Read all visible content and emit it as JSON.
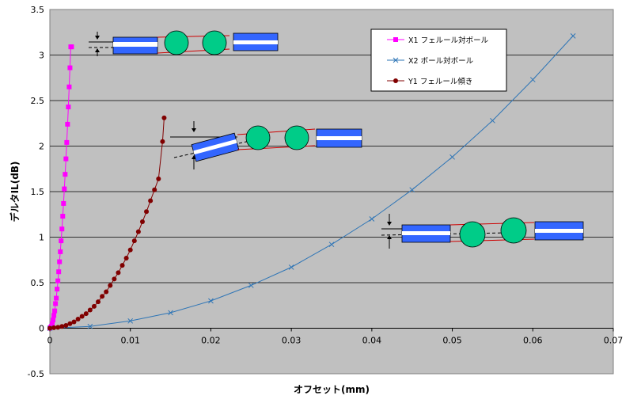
{
  "chart_data": {
    "type": "line",
    "title": "",
    "xlabel": "オフセット(mm)",
    "ylabel": "デルタIL(dB)",
    "xlim": [
      0,
      0.07
    ],
    "ylim": [
      -0.5,
      3.5
    ],
    "xticks": [
      "0",
      "0.01",
      "0.02",
      "0.03",
      "0.04",
      "0.05",
      "0.06",
      "0.07"
    ],
    "yticks": [
      "-0.5",
      "0",
      "0.5",
      "1",
      "1.5",
      "2",
      "2.5",
      "3",
      "3.5"
    ],
    "grid": "horizontal",
    "legend_position": "top-right",
    "series": [
      {
        "name": "X1 フェルール対ボール",
        "color": "#ff00ff",
        "marker": "square",
        "x": [
          0,
          0.0001,
          0.0002,
          0.0003,
          0.0004,
          0.0005,
          0.0006,
          0.0007,
          0.0008,
          0.0009,
          0.001,
          0.0011,
          0.0012,
          0.0013,
          0.0014,
          0.0015,
          0.0016,
          0.0017,
          0.0018,
          0.0019,
          0.002,
          0.0021,
          0.0022,
          0.0023,
          0.0024,
          0.0025,
          0.0026,
          0.0027
        ],
        "y": [
          0,
          0.01,
          0.02,
          0.05,
          0.09,
          0.14,
          0.19,
          0.27,
          0.33,
          0.43,
          0.52,
          0.62,
          0.73,
          0.84,
          0.96,
          1.09,
          1.23,
          1.37,
          1.53,
          1.69,
          1.86,
          2.04,
          2.24,
          2.43,
          2.65,
          2.86,
          3.09,
          3.09
        ]
      },
      {
        "name": "X2 ボール対ボール",
        "color": "#2e75b6",
        "marker": "x",
        "x": [
          0,
          0.005,
          0.01,
          0.015,
          0.02,
          0.025,
          0.03,
          0.035,
          0.04,
          0.045,
          0.05,
          0.055,
          0.06,
          0.065
        ],
        "y": [
          0,
          0.02,
          0.08,
          0.17,
          0.3,
          0.47,
          0.67,
          0.92,
          1.2,
          1.52,
          1.88,
          2.28,
          2.73,
          3.21
        ]
      },
      {
        "name": "Y1 フェルール傾き",
        "color": "#800000",
        "marker": "circle",
        "x": [
          0,
          0.0005,
          0.001,
          0.0015,
          0.002,
          0.0025,
          0.003,
          0.0035,
          0.004,
          0.0045,
          0.005,
          0.0055,
          0.006,
          0.0065,
          0.007,
          0.0075,
          0.008,
          0.0085,
          0.009,
          0.0095,
          0.01,
          0.0105,
          0.011,
          0.0115,
          0.012,
          0.0125,
          0.013,
          0.0135,
          0.014,
          0.0142
        ],
        "y": [
          0,
          0.005,
          0.01,
          0.02,
          0.03,
          0.05,
          0.07,
          0.1,
          0.13,
          0.16,
          0.2,
          0.24,
          0.29,
          0.35,
          0.4,
          0.47,
          0.54,
          0.61,
          0.69,
          0.77,
          0.86,
          0.96,
          1.06,
          1.17,
          1.28,
          1.4,
          1.52,
          1.64,
          2.05,
          2.31
        ]
      }
    ]
  }
}
